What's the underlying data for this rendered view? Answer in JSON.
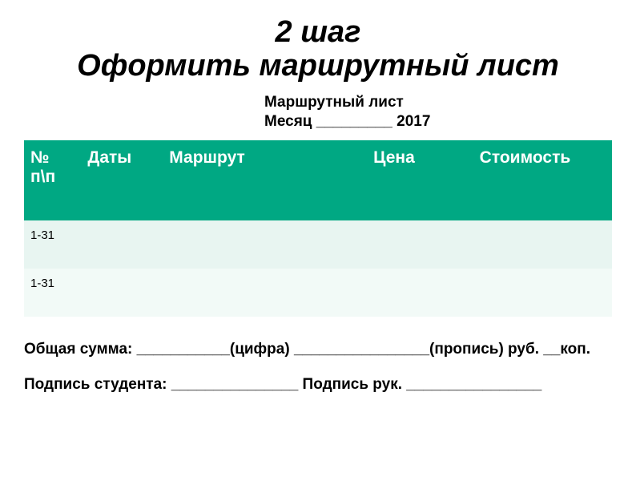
{
  "title_line1": "2 шаг",
  "title_line2": "Оформить маршрутный лист",
  "subheader_line1": "Маршрутный лист",
  "subheader_line2": "Месяц _________ 2017",
  "table": {
    "header_bg": "#00a883",
    "header_color": "#ffffff",
    "row_odd_bg": "#e8f5f1",
    "row_even_bg": "#f2faf7",
    "columns": {
      "num": "№ п\\п",
      "dates": "Даты",
      "route": "Маршрут",
      "price": "Цена",
      "cost": "Стоимость"
    },
    "rows": [
      {
        "num": "1-31",
        "dates": "",
        "route": "",
        "price": "",
        "cost": ""
      },
      {
        "num": "1-31",
        "dates": "",
        "route": "",
        "price": "",
        "cost": ""
      }
    ]
  },
  "footer": {
    "total": "Общая сумма: ___________(цифра) ________________(пропись) руб. __коп.",
    "signatures": "Подпись студента: _______________  Подпись рук. ________________"
  }
}
